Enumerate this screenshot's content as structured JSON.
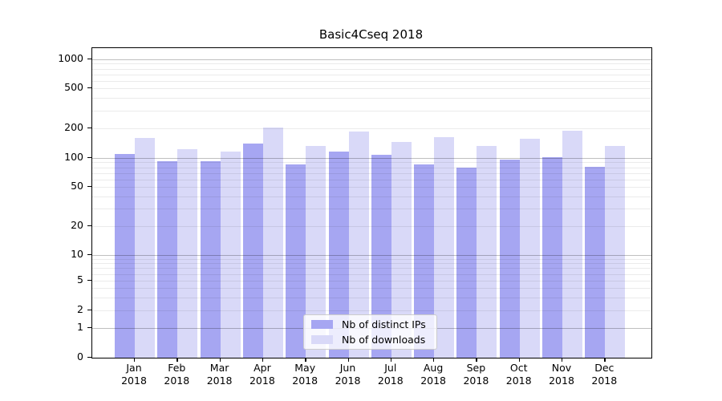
{
  "title": "Basic4Cseq 2018",
  "chart_data": {
    "type": "bar",
    "title": "Basic4Cseq 2018",
    "categories": [
      "Jan",
      "Feb",
      "Mar",
      "Apr",
      "May",
      "Jun",
      "Jul",
      "Aug",
      "Sep",
      "Oct",
      "Nov",
      "Dec"
    ],
    "category_year": "2018",
    "series": [
      {
        "name": "Nb of distinct IPs",
        "color": "#a6a6f2",
        "values": [
          110,
          92,
          92,
          140,
          86,
          116,
          108,
          86,
          80,
          96,
          102,
          81
        ]
      },
      {
        "name": "Nb of downloads",
        "color": "#d9d9f8",
        "values": [
          160,
          122,
          116,
          205,
          132,
          186,
          145,
          163,
          132,
          158,
          189,
          132
        ]
      }
    ],
    "y_ticks": [
      0,
      1,
      2,
      5,
      10,
      20,
      50,
      100,
      200,
      500,
      1000
    ],
    "yscale": "symlog",
    "ylim": [
      0,
      1500
    ],
    "grid": "both",
    "legend_position": "lower center"
  }
}
